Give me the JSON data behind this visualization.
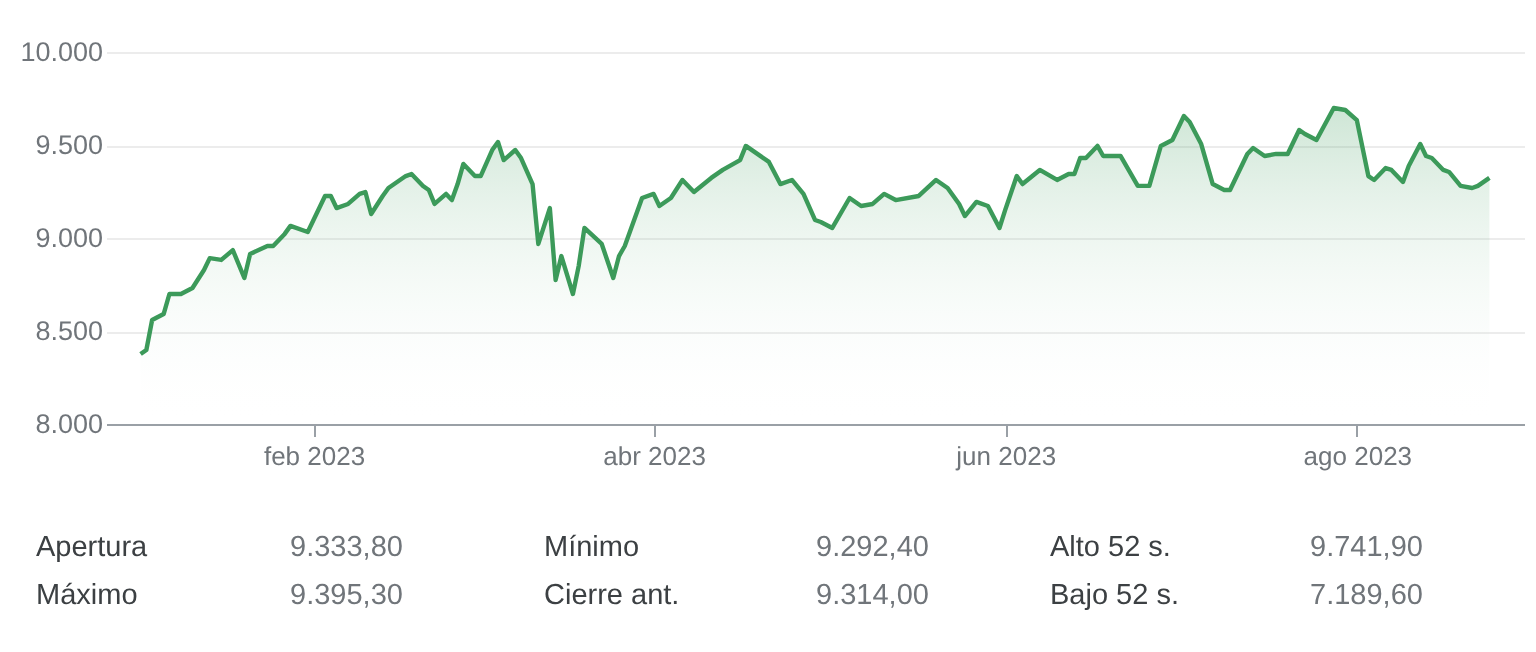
{
  "chart_data": {
    "type": "area",
    "x": [
      "2023-01-02",
      "2023-01-03",
      "2023-01-04",
      "2023-01-06",
      "2023-01-07",
      "2023-01-09",
      "2023-01-11",
      "2023-01-13",
      "2023-01-14",
      "2023-01-16",
      "2023-01-18",
      "2023-01-20",
      "2023-01-21",
      "2023-01-24",
      "2023-01-25",
      "2023-01-27",
      "2023-01-28",
      "2023-01-31",
      "2023-02-01",
      "2023-02-03",
      "2023-02-04",
      "2023-02-05",
      "2023-02-07",
      "2023-02-09",
      "2023-02-10",
      "2023-02-11",
      "2023-02-13",
      "2023-02-14",
      "2023-02-17",
      "2023-02-18",
      "2023-02-20",
      "2023-02-21",
      "2023-02-22",
      "2023-02-24",
      "2023-02-25",
      "2023-02-26",
      "2023-02-27",
      "2023-03-01",
      "2023-03-02",
      "2023-03-04",
      "2023-03-05",
      "2023-03-06",
      "2023-03-08",
      "2023-03-09",
      "2023-03-11",
      "2023-03-12",
      "2023-03-14",
      "2023-03-15",
      "2023-03-16",
      "2023-03-18",
      "2023-03-19",
      "2023-03-20",
      "2023-03-23",
      "2023-03-25",
      "2023-03-26",
      "2023-03-27",
      "2023-03-30",
      "2023-04-01",
      "2023-04-02",
      "2023-04-04",
      "2023-04-06",
      "2023-04-08",
      "2023-04-11",
      "2023-04-13",
      "2023-04-16",
      "2023-04-17",
      "2023-04-19",
      "2023-04-21",
      "2023-04-23",
      "2023-04-25",
      "2023-04-27",
      "2023-04-29",
      "2023-04-30",
      "2023-05-02",
      "2023-05-05",
      "2023-05-07",
      "2023-05-09",
      "2023-05-11",
      "2023-05-13",
      "2023-05-17",
      "2023-05-20",
      "2023-05-22",
      "2023-05-24",
      "2023-05-25",
      "2023-05-27",
      "2023-05-29",
      "2023-05-31",
      "2023-06-01",
      "2023-06-03",
      "2023-06-04",
      "2023-06-07",
      "2023-06-10",
      "2023-06-12",
      "2023-06-13",
      "2023-06-14",
      "2023-06-15",
      "2023-06-17",
      "2023-06-18",
      "2023-06-21",
      "2023-06-24",
      "2023-06-26",
      "2023-06-28",
      "2023-06-30",
      "2023-07-02",
      "2023-07-03",
      "2023-07-05",
      "2023-07-07",
      "2023-07-09",
      "2023-07-10",
      "2023-07-13",
      "2023-07-14",
      "2023-07-16",
      "2023-07-18",
      "2023-07-20",
      "2023-07-22",
      "2023-07-23",
      "2023-07-25",
      "2023-07-28",
      "2023-07-30",
      "2023-08-01",
      "2023-08-03",
      "2023-08-04",
      "2023-08-06",
      "2023-08-07",
      "2023-08-09",
      "2023-08-10",
      "2023-08-12",
      "2023-08-13",
      "2023-08-14",
      "2023-08-16",
      "2023-08-17",
      "2023-08-19",
      "2023-08-21",
      "2023-08-22",
      "2023-08-24"
    ],
    "series": [
      {
        "color": "#3c9a5a",
        "values": [
          8376,
          8398,
          8559,
          8591,
          8699,
          8699,
          8731,
          8828,
          8892,
          8882,
          8935,
          8785,
          8914,
          8957,
          8957,
          9022,
          9065,
          9032,
          9097,
          9226,
          9226,
          9161,
          9183,
          9237,
          9247,
          9129,
          9226,
          9269,
          9333,
          9344,
          9280,
          9258,
          9183,
          9237,
          9204,
          9290,
          9398,
          9333,
          9333,
          9473,
          9516,
          9419,
          9473,
          9430,
          9290,
          8968,
          9161,
          8774,
          8903,
          8699,
          8849,
          9054,
          8968,
          8785,
          8903,
          8957,
          9215,
          9237,
          9172,
          9215,
          9312,
          9247,
          9323,
          9366,
          9419,
          9495,
          9452,
          9409,
          9290,
          9312,
          9237,
          9097,
          9086,
          9054,
          9215,
          9172,
          9183,
          9237,
          9204,
          9226,
          9312,
          9269,
          9183,
          9118,
          9194,
          9172,
          9054,
          9151,
          9333,
          9290,
          9366,
          9312,
          9344,
          9344,
          9430,
          9430,
          9495,
          9441,
          9441,
          9280,
          9280,
          9495,
          9527,
          9656,
          9624,
          9505,
          9290,
          9258,
          9258,
          9452,
          9484,
          9441,
          9452,
          9452,
          9581,
          9559,
          9527,
          9699,
          9688,
          9634,
          9333,
          9312,
          9376,
          9366,
          9301,
          9387,
          9505,
          9441,
          9430,
          9366,
          9355,
          9280,
          9269,
          9280,
          9323
        ]
      }
    ],
    "xlim": [
      "2022-12-27",
      "2023-08-30"
    ],
    "xticks": [
      {
        "value": "2023-02-01",
        "label": "feb 2023"
      },
      {
        "value": "2023-04-01",
        "label": "abr 2023"
      },
      {
        "value": "2023-06-01",
        "label": "jun 2023"
      },
      {
        "value": "2023-08-01",
        "label": "ago 2023"
      }
    ],
    "ylim": [
      8000,
      10000
    ],
    "yticks": [
      {
        "value": 8000,
        "label": "8.000"
      },
      {
        "value": 8500,
        "label": "8.500"
      },
      {
        "value": 9000,
        "label": "9.000"
      },
      {
        "value": 9500,
        "label": "9.500"
      },
      {
        "value": 10000,
        "label": "10.000"
      }
    ],
    "grid": "y",
    "annotations": [
      "Apertura",
      "9.333,80",
      "Mínimo",
      "9.292,40",
      "Alto 52 s.",
      "9.741,90",
      "Máximo",
      "9.395,30",
      "Cierre ant.",
      "9.314,00",
      "Bajo 52 s.",
      "7.189,60"
    ]
  }
}
